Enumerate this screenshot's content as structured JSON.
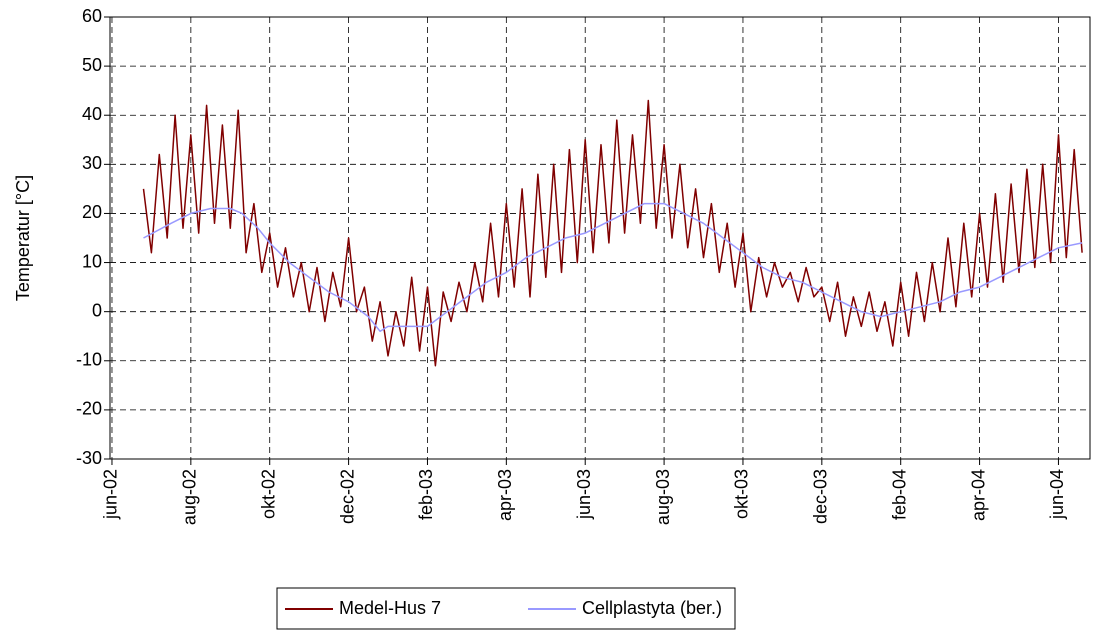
{
  "chart_data": {
    "type": "line",
    "ylabel": "Temperatur [°C]",
    "xlim": [
      -0.05,
      24.8
    ],
    "ylim": [
      -30,
      60
    ],
    "yticks": [
      -30,
      -20,
      -10,
      0,
      10,
      20,
      30,
      40,
      50,
      60
    ],
    "xticks": [
      {
        "value": 0,
        "label": "jun-02"
      },
      {
        "value": 2,
        "label": "aug-02"
      },
      {
        "value": 4,
        "label": "okt-02"
      },
      {
        "value": 6,
        "label": "dec-02"
      },
      {
        "value": 8,
        "label": "feb-03"
      },
      {
        "value": 10,
        "label": "apr-03"
      },
      {
        "value": 12,
        "label": "jun-03"
      },
      {
        "value": 14,
        "label": "aug-03"
      },
      {
        "value": 16,
        "label": "okt-03"
      },
      {
        "value": 18,
        "label": "dec-03"
      },
      {
        "value": 20,
        "label": "feb-04"
      },
      {
        "value": 22,
        "label": "apr-04"
      },
      {
        "value": 24,
        "label": "jun-04"
      }
    ],
    "grid": true,
    "series": [
      {
        "name": "Medel-Hus 7",
        "color": "#800000",
        "x": [
          0.8,
          1.0,
          1.2,
          1.4,
          1.6,
          1.8,
          2.0,
          2.2,
          2.4,
          2.6,
          2.8,
          3.0,
          3.2,
          3.4,
          3.6,
          3.8,
          4.0,
          4.2,
          4.4,
          4.6,
          4.8,
          5.0,
          5.2,
          5.4,
          5.6,
          5.8,
          6.0,
          6.2,
          6.4,
          6.6,
          6.8,
          7.0,
          7.2,
          7.4,
          7.6,
          7.8,
          8.0,
          8.2,
          8.4,
          8.6,
          8.8,
          9.0,
          9.2,
          9.4,
          9.6,
          9.8,
          10.0,
          10.2,
          10.4,
          10.6,
          10.8,
          11.0,
          11.2,
          11.4,
          11.6,
          11.8,
          12.0,
          12.2,
          12.4,
          12.6,
          12.8,
          13.0,
          13.2,
          13.4,
          13.6,
          13.8,
          14.0,
          14.2,
          14.4,
          14.6,
          14.8,
          15.0,
          15.2,
          15.4,
          15.6,
          15.8,
          16.0,
          16.2,
          16.4,
          16.6,
          16.8,
          17.0,
          17.2,
          17.4,
          17.6,
          17.8,
          18.0,
          18.2,
          18.4,
          18.6,
          18.8,
          19.0,
          19.2,
          19.4,
          19.6,
          19.8,
          20.0,
          20.2,
          20.4,
          20.6,
          20.8,
          21.0,
          21.2,
          21.4,
          21.6,
          21.8,
          22.0,
          22.2,
          22.4,
          22.6,
          22.8,
          23.0,
          23.2,
          23.4,
          23.6,
          23.8,
          24.0,
          24.2,
          24.4,
          24.6
        ],
        "values": [
          25,
          12,
          32,
          15,
          40,
          17,
          36,
          16,
          42,
          18,
          38,
          17,
          41,
          12,
          22,
          8,
          16,
          5,
          13,
          3,
          10,
          0,
          9,
          -2,
          8,
          1,
          15,
          0,
          5,
          -6,
          2,
          -9,
          0,
          -7,
          7,
          -8,
          5,
          -11,
          4,
          -2,
          6,
          0,
          10,
          2,
          18,
          3,
          22,
          5,
          25,
          3,
          28,
          7,
          30,
          8,
          33,
          10,
          35,
          12,
          34,
          14,
          39,
          16,
          36,
          18,
          43,
          17,
          34,
          15,
          30,
          13,
          25,
          11,
          22,
          8,
          18,
          5,
          16,
          0,
          11,
          3,
          10,
          5,
          8,
          2,
          9,
          3,
          5,
          -2,
          6,
          -5,
          3,
          -3,
          4,
          -4,
          2,
          -7,
          6,
          -5,
          8,
          -2,
          10,
          0,
          15,
          1,
          18,
          3,
          20,
          5,
          24,
          6,
          26,
          8,
          29,
          9,
          30,
          10,
          36,
          11,
          33,
          12
        ]
      },
      {
        "name": "Cellplastyta (ber.)",
        "color": "#9999ff",
        "x": [
          0.8,
          1.5,
          2,
          2.5,
          3,
          3.3,
          3.7,
          4,
          4.5,
          5,
          5.5,
          6,
          6.5,
          6.8,
          7,
          7.5,
          8,
          8.5,
          9,
          9.5,
          10,
          10.5,
          11,
          11.5,
          12,
          12.5,
          13,
          13.5,
          14,
          14.5,
          15,
          15.5,
          16,
          16.5,
          17,
          17.5,
          18,
          18.5,
          19,
          19.5,
          20,
          20.5,
          21,
          21.5,
          22,
          22.5,
          23,
          23.5,
          24,
          24.6
        ],
        "values": [
          15,
          18,
          20,
          21,
          21,
          20,
          17,
          14,
          10,
          7,
          4,
          2,
          -1,
          -4,
          -3,
          -3,
          -3,
          0,
          3,
          6,
          8,
          11,
          13,
          15,
          16,
          18,
          20,
          22,
          22,
          20,
          18,
          15,
          12,
          9,
          7,
          6,
          4,
          2,
          0,
          -1,
          0,
          1,
          2,
          4,
          5,
          7,
          9,
          11,
          13,
          14
        ]
      }
    ]
  }
}
